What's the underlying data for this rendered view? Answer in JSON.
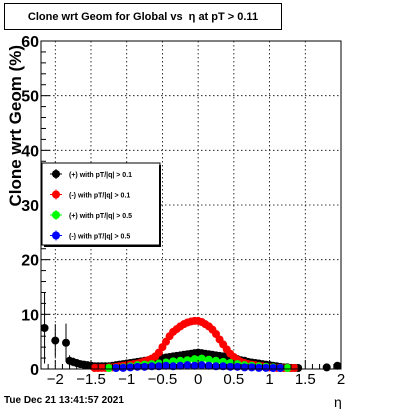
{
  "title": "Clone wrt Geom for Global vs  η at pT > 0.11",
  "timestamp": "Tue Dec 21 13:41:57 2021",
  "chart_data": {
    "type": "scatter",
    "xlabel": "η",
    "ylabel": "Clone wrt Geom (%)",
    "xlim": [
      -2.2,
      2.0
    ],
    "ylim": [
      0,
      60
    ],
    "xticks": [
      -2,
      -1.5,
      -1,
      -0.5,
      0,
      0.5,
      1,
      1.5,
      2
    ],
    "xtick_labels": [
      "−2",
      "−1.5",
      "−1",
      "−0.5",
      "0",
      "0.5",
      "1",
      "1.5",
      "2"
    ],
    "yticks": [
      0,
      10,
      20,
      30,
      40,
      50,
      60
    ],
    "ytick_labels": [
      "0",
      "10",
      "20",
      "30",
      "40",
      "50",
      "60"
    ],
    "grid": true,
    "legend_position": "left-middle",
    "series": [
      {
        "name": "(+) with pT/|q| > 0.1",
        "color": "#000000",
        "x": [
          -2.15,
          -2.0,
          -1.85,
          -1.8,
          -1.75,
          -1.7,
          -1.65,
          -1.6,
          -1.55,
          -1.5,
          -1.45,
          -1.4,
          -1.35,
          -1.3,
          -1.25,
          -1.2,
          -1.15,
          -1.1,
          -1.05,
          -1.0,
          -0.95,
          -0.9,
          -0.85,
          -0.8,
          -0.75,
          -0.7,
          -0.65,
          -0.6,
          -0.55,
          -0.5,
          -0.45,
          -0.4,
          -0.35,
          -0.3,
          -0.25,
          -0.2,
          -0.15,
          -0.1,
          -0.05,
          0.0,
          0.05,
          0.1,
          0.15,
          0.2,
          0.25,
          0.3,
          0.35,
          0.4,
          0.45,
          0.5,
          0.55,
          0.6,
          0.65,
          0.7,
          0.75,
          0.8,
          0.85,
          0.9,
          0.95,
          1.0,
          1.05,
          1.1,
          1.15,
          1.2,
          1.25,
          1.3,
          1.35,
          1.4,
          1.8,
          1.95
        ],
        "y": [
          7.5,
          5.2,
          4.8,
          1.5,
          1.3,
          1.1,
          0.9,
          0.8,
          0.7,
          0.6,
          0.5,
          0.5,
          0.5,
          0.5,
          0.5,
          0.6,
          0.7,
          0.8,
          0.9,
          1.0,
          1.1,
          1.2,
          1.3,
          1.4,
          1.5,
          1.6,
          1.7,
          1.8,
          1.9,
          2.0,
          2.1,
          2.2,
          2.3,
          2.4,
          2.5,
          2.6,
          2.7,
          2.8,
          2.9,
          3.0,
          2.9,
          2.8,
          2.7,
          2.6,
          2.5,
          2.4,
          2.3,
          2.2,
          2.1,
          2.0,
          1.8,
          1.6,
          1.5,
          1.3,
          1.2,
          1.1,
          1.0,
          0.9,
          0.8,
          0.7,
          0.6,
          0.5,
          0.4,
          0.3,
          0.3,
          0.2,
          0.2,
          0.1,
          0.3,
          0.6
        ],
        "err": [
          6.5,
          3.0,
          3.5,
          1.0,
          0.8,
          0.6,
          0.4,
          0.3,
          0.3,
          0.2,
          0.2,
          0.2,
          0.2,
          0.2,
          0.2,
          0.2,
          0.2,
          0.2,
          0.2,
          0.2,
          0.2,
          0.2,
          0.2,
          0.2,
          0.2,
          0.2,
          0.2,
          0.2,
          0.2,
          0.2,
          0.2,
          0.2,
          0.2,
          0.2,
          0.2,
          0.2,
          0.2,
          0.2,
          0.2,
          0.2,
          0.2,
          0.2,
          0.2,
          0.2,
          0.2,
          0.2,
          0.2,
          0.2,
          0.2,
          0.2,
          0.2,
          0.2,
          0.2,
          0.2,
          0.2,
          0.2,
          0.2,
          0.2,
          0.2,
          0.2,
          0.2,
          0.2,
          0.2,
          0.2,
          0.2,
          0.2,
          0.2,
          0.2,
          0.3,
          0.5
        ]
      },
      {
        "name": "(-) with pT/|q| > 0.1",
        "color": "#ff0000",
        "x": [
          -1.45,
          -1.4,
          -1.35,
          -1.3,
          -1.25,
          -1.2,
          -1.15,
          -1.1,
          -1.05,
          -1.0,
          -0.95,
          -0.9,
          -0.85,
          -0.8,
          -0.75,
          -0.7,
          -0.65,
          -0.6,
          -0.55,
          -0.5,
          -0.45,
          -0.4,
          -0.35,
          -0.3,
          -0.25,
          -0.2,
          -0.15,
          -0.1,
          -0.05,
          0.0,
          0.05,
          0.1,
          0.15,
          0.2,
          0.25,
          0.3,
          0.35,
          0.4,
          0.45,
          0.5,
          0.55,
          0.6,
          0.65,
          0.7,
          0.75,
          0.8,
          0.85,
          0.9,
          0.95,
          1.0,
          1.05,
          1.1,
          1.15,
          1.2,
          1.25,
          1.3,
          1.35
        ],
        "y": [
          0.0,
          0.1,
          0.2,
          0.2,
          0.3,
          0.3,
          0.4,
          0.5,
          0.6,
          0.7,
          0.8,
          0.9,
          1.0,
          1.2,
          1.4,
          1.6,
          1.9,
          2.3,
          3.0,
          4.0,
          5.0,
          6.0,
          6.8,
          7.3,
          7.8,
          8.2,
          8.5,
          8.7,
          8.8,
          8.8,
          8.6,
          8.2,
          7.8,
          7.2,
          6.4,
          5.4,
          4.5,
          3.6,
          2.8,
          2.2,
          1.7,
          1.3,
          1.1,
          0.9,
          0.8,
          0.7,
          0.6,
          0.5,
          0.4,
          0.3,
          0.3,
          0.2,
          0.2,
          0.1,
          0.1,
          0.1,
          0.1
        ],
        "err": [
          0.2,
          0.2,
          0.2,
          0.2,
          0.2,
          0.2,
          0.2,
          0.2,
          0.2,
          0.2,
          0.2,
          0.2,
          0.2,
          0.2,
          0.2,
          0.2,
          0.3,
          0.3,
          0.3,
          0.4,
          0.4,
          0.5,
          0.5,
          0.5,
          0.5,
          0.5,
          0.5,
          0.5,
          0.5,
          0.5,
          0.5,
          0.5,
          0.5,
          0.5,
          0.5,
          0.4,
          0.4,
          0.4,
          0.3,
          0.3,
          0.3,
          0.2,
          0.2,
          0.2,
          0.2,
          0.2,
          0.2,
          0.2,
          0.2,
          0.2,
          0.2,
          0.2,
          0.2,
          0.2,
          0.2,
          0.2,
          0.2
        ]
      },
      {
        "name": "(+) with pT/|q| > 0.5",
        "color": "#00ff00",
        "x": [
          -1.25,
          -1.15,
          -1.05,
          -0.95,
          -0.85,
          -0.75,
          -0.65,
          -0.55,
          -0.45,
          -0.35,
          -0.25,
          -0.15,
          -0.05,
          0.05,
          0.15,
          0.25,
          0.35,
          0.45,
          0.55,
          0.65,
          0.75,
          0.85,
          0.95,
          1.05,
          1.15,
          1.25
        ],
        "y": [
          0.1,
          0.2,
          0.3,
          0.5,
          0.7,
          0.8,
          0.9,
          1.0,
          1.2,
          1.4,
          1.5,
          1.6,
          1.8,
          1.9,
          1.7,
          1.5,
          1.3,
          1.1,
          0.9,
          0.7,
          0.6,
          0.5,
          0.4,
          0.3,
          0.2,
          0.1
        ],
        "err": [
          0.2,
          0.2,
          0.2,
          0.2,
          0.2,
          0.2,
          0.2,
          0.2,
          0.3,
          0.3,
          0.3,
          0.3,
          0.3,
          0.3,
          0.3,
          0.3,
          0.3,
          0.3,
          0.2,
          0.2,
          0.2,
          0.2,
          0.2,
          0.2,
          0.2,
          0.2
        ]
      },
      {
        "name": "(-) with pT/|q| > 0.5",
        "color": "#0000ff",
        "x": [
          -1.15,
          -1.05,
          -0.95,
          -0.85,
          -0.75,
          -0.65,
          -0.55,
          -0.45,
          -0.35,
          -0.25,
          -0.15,
          -0.05,
          0.05,
          0.15,
          0.25,
          0.35,
          0.45,
          0.55,
          0.65,
          0.75,
          0.85,
          0.95,
          1.05,
          1.15
        ],
        "y": [
          0.1,
          0.2,
          0.3,
          0.4,
          0.4,
          0.5,
          0.5,
          0.6,
          0.5,
          0.6,
          0.7,
          0.6,
          0.7,
          0.6,
          0.5,
          0.5,
          0.4,
          0.4,
          0.3,
          0.3,
          0.2,
          0.2,
          0.1,
          0.1
        ],
        "err": [
          0.2,
          0.2,
          0.2,
          0.2,
          0.2,
          0.2,
          0.2,
          0.2,
          0.2,
          0.2,
          0.2,
          0.2,
          0.2,
          0.2,
          0.2,
          0.2,
          0.2,
          0.2,
          0.2,
          0.2,
          0.2,
          0.2,
          0.2,
          0.2
        ]
      }
    ]
  }
}
